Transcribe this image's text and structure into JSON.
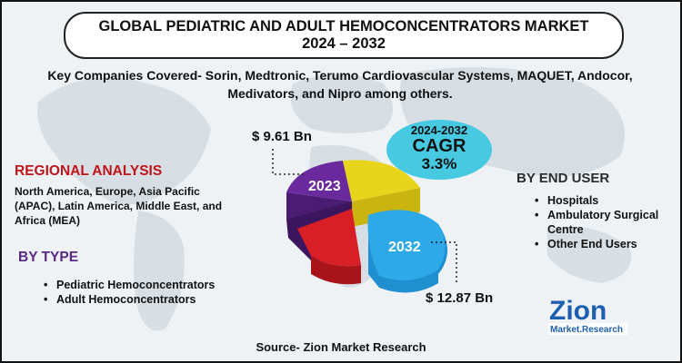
{
  "title": "GLOBAL PEDIATRIC AND ADULT HEMOCONCENTRATORS MARKET 2024 – 2032",
  "companies": "Key Companies Covered- Sorin, Medtronic, Terumo Cardiovascular Systems, MAQUET, Andocor, Medivators, and Nipro among others.",
  "regional": {
    "heading": "REGIONAL ANALYSIS",
    "text": "North America, Europe, Asia Pacific (APAC), Latin America, Middle East, and Africa (MEA)"
  },
  "by_type": {
    "heading": "BY TYPE",
    "items": [
      "Pediatric Hemoconcentrators",
      "Adult Hemoconcentrators"
    ]
  },
  "by_end_user": {
    "heading": "BY END USER",
    "items": [
      "Hospitals",
      "Ambulatory Surgical Centre",
      "Other End Users"
    ]
  },
  "cagr": {
    "period": "2024-2032",
    "label": "CAGR",
    "value": "3.3%"
  },
  "chart_data": {
    "type": "pie",
    "title": "",
    "categories": [
      "2023",
      "2032"
    ],
    "values": [
      9.61,
      12.87
    ],
    "value_labels": [
      "$ 9.61 Bn",
      "$ 12.87 Bn"
    ],
    "unit": "Bn USD"
  },
  "source": "Source- Zion Market Research",
  "logo": {
    "word": "Zion",
    "sub": "Market.Research"
  },
  "colors": {
    "red_heading": "#c0141b",
    "purple_heading": "#5a2a86",
    "cagr_bubble": "#48c9e2",
    "slice_2023": "#6a2a9e",
    "slice_2032": "#2ea9e8",
    "slice_red": "#d81f26",
    "slice_yellow": "#e8d41a"
  }
}
